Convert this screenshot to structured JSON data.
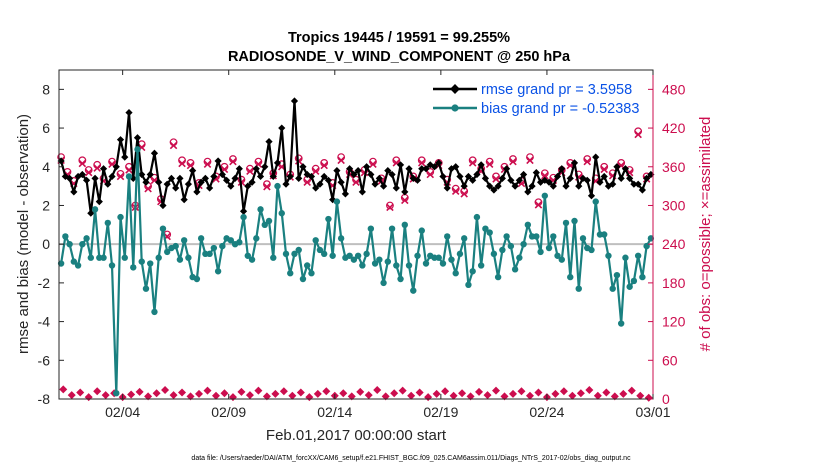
{
  "chart_data": {
    "type": "line",
    "title_line1": "Tropics 19445 / 19591 = 99.255%",
    "title_line2": "RADIOSONDE_V_WIND_COMPONENT @ 250 hPa",
    "xlabel": "Feb.01,2017 00:00:00 start",
    "ylabel": "rmse and bias (model - observation)",
    "ylabel_right": "# of obs: o=possible; ×=assimilated",
    "footer": "data file: /Users/raeder/DAI/ATM_forcXX/CAM6_setup/f.e21.FHIST_BGC.f09_025.CAM6assim.011/Diags_NTrS_2017-02/obs_diag_output.nc",
    "ylim": [
      -8,
      9
    ],
    "ylim_right": [
      0,
      510
    ],
    "xlim": [
      0,
      28
    ],
    "x_ticks": [
      {
        "x": 3,
        "label": "02/04"
      },
      {
        "x": 8,
        "label": "02/09"
      },
      {
        "x": 13,
        "label": "02/14"
      },
      {
        "x": 18,
        "label": "02/19"
      },
      {
        "x": 23,
        "label": "02/24"
      },
      {
        "x": 28,
        "label": "03/01"
      }
    ],
    "y_ticks": [
      -8,
      -6,
      -4,
      -2,
      0,
      2,
      4,
      6,
      8
    ],
    "y_ticks_right": [
      0,
      60,
      120,
      180,
      240,
      300,
      360,
      420,
      480
    ],
    "zero_line": 0,
    "series": [
      {
        "name": "rmse grand pr = 3.5958",
        "color": "#000000",
        "marker": "diamond",
        "values": [
          4.3,
          3.5,
          3.4,
          2.7,
          3.5,
          3.6,
          3.3,
          1.6,
          3.4,
          2.2,
          3.9,
          3.1,
          3.5,
          4.0,
          5.4,
          4.5,
          6.8,
          3.4,
          5.5,
          3.6,
          3.2,
          3.6,
          4.7,
          3.2,
          2.0,
          3.1,
          3.4,
          2.9,
          3.4,
          2.3,
          3.1,
          3.8,
          2.7,
          3.2,
          3.4,
          2.9,
          3.5,
          4.3,
          3.6,
          3.3,
          3.0,
          3.4,
          3.9,
          1.7,
          3.0,
          3.2,
          3.9,
          3.5,
          4.0,
          5.3,
          3.5,
          4.2,
          6.0,
          3.1,
          3.5,
          7.4,
          3.4,
          4.0,
          3.6,
          3.5,
          2.9,
          3.1,
          3.5,
          3.3,
          2.3,
          3.8,
          3.2,
          2.6,
          3.9,
          3.6,
          3.8,
          2.7,
          4.0,
          3.6,
          3.1,
          3.4,
          3.0,
          3.8,
          3.6,
          2.9,
          4.1,
          2.7,
          3.9,
          3.4,
          3.3,
          3.9,
          3.9,
          4.1,
          4.0,
          4.2,
          3.5,
          2.9,
          3.9,
          4.0,
          3.5,
          3.0,
          3.5,
          3.3,
          3.6,
          4.1,
          3.4,
          3.0,
          2.8,
          3.0,
          3.4,
          3.9,
          3.3,
          3.0,
          3.3,
          3.6,
          2.7,
          3.0,
          3.7,
          3.2,
          3.3,
          3.2,
          3.0,
          3.5,
          3.9,
          3.0,
          3.4,
          4.2,
          3.0,
          3.4,
          3.3,
          2.5,
          4.5,
          3.2,
          3.5,
          3.0,
          3.1,
          4.0,
          3.4,
          3.9,
          3.4,
          3.1,
          3.1,
          2.8,
          3.4,
          3.6
        ]
      },
      {
        "name": "bias grand pr = -0.52383",
        "color": "#1a8080",
        "marker": "circle",
        "values": [
          -1.0,
          0.4,
          0.0,
          -0.9,
          -1.1,
          0.0,
          0.3,
          -0.7,
          1.8,
          -0.7,
          -0.7,
          1.1,
          -1.1,
          -7.7,
          1.4,
          -0.7,
          3.5,
          -1.2,
          4.9,
          -0.9,
          -2.3,
          -1.0,
          -3.5,
          -0.7,
          0.8,
          -0.4,
          -0.2,
          -0.1,
          -0.8,
          0.2,
          -0.7,
          -1.7,
          -1.8,
          0.3,
          -0.5,
          -0.5,
          -0.2,
          -1.4,
          -0.1,
          0.3,
          0.2,
          0.0,
          0.1,
          1.4,
          -0.6,
          -0.8,
          0.3,
          1.8,
          1.0,
          1.2,
          -0.7,
          3.0,
          1.6,
          -0.5,
          -1.5,
          -0.5,
          -0.3,
          -1.8,
          -1.1,
          -1.5,
          0.2,
          -0.3,
          -0.5,
          1.3,
          -0.6,
          2.2,
          0.3,
          -0.7,
          -0.6,
          -0.8,
          -0.6,
          -1.1,
          -0.5,
          0.8,
          -1.0,
          -0.8,
          -2.0,
          -0.9,
          0.8,
          -1.1,
          -1.8,
          1.0,
          -1.1,
          -2.4,
          -0.6,
          0.7,
          -1.0,
          -0.6,
          -0.7,
          -0.7,
          -1.0,
          0.4,
          -0.8,
          -1.5,
          -0.5,
          0.3,
          -2.1,
          -1.4,
          1.4,
          -1.1,
          0.8,
          0.6,
          -0.5,
          -1.7,
          -0.3,
          0.4,
          -0.1,
          -1.3,
          -0.7,
          0.0,
          1.0,
          0.4,
          0.4,
          -0.4,
          2.5,
          -0.2,
          0.4,
          -0.6,
          -0.8,
          1.1,
          -1.7,
          1.2,
          -2.3,
          0.3,
          -0.2,
          -0.3,
          2.2,
          0.5,
          0.5,
          -0.6,
          -2.3,
          -1.6,
          -4.1,
          -0.7,
          -2.2,
          -1.9,
          -0.6,
          -1.7,
          -0.1,
          0.3
        ]
      }
    ],
    "obs_possible": [
      {
        "x": 0.1,
        "v": 375
      },
      {
        "x": 0.4,
        "v": 352
      },
      {
        "x": 0.7,
        "v": 338
      },
      {
        "x": 1.1,
        "v": 370
      },
      {
        "x": 1.4,
        "v": 355
      },
      {
        "x": 1.8,
        "v": 363
      },
      {
        "x": 2.1,
        "v": 342
      },
      {
        "x": 2.5,
        "v": 368
      },
      {
        "x": 2.9,
        "v": 349
      },
      {
        "x": 3.3,
        "v": 360
      },
      {
        "x": 3.6,
        "v": 300
      },
      {
        "x": 3.9,
        "v": 395
      },
      {
        "x": 4.2,
        "v": 330
      },
      {
        "x": 4.5,
        "v": 343
      },
      {
        "x": 4.8,
        "v": 310
      },
      {
        "x": 5.1,
        "v": 255
      },
      {
        "x": 5.4,
        "v": 398
      },
      {
        "x": 5.8,
        "v": 370
      },
      {
        "x": 6.2,
        "v": 366
      },
      {
        "x": 6.6,
        "v": 335
      },
      {
        "x": 7.0,
        "v": 368
      },
      {
        "x": 7.4,
        "v": 345
      },
      {
        "x": 7.8,
        "v": 360
      },
      {
        "x": 8.2,
        "v": 372
      },
      {
        "x": 8.6,
        "v": 340
      },
      {
        "x": 9.0,
        "v": 357
      },
      {
        "x": 9.4,
        "v": 368
      },
      {
        "x": 9.8,
        "v": 333
      },
      {
        "x": 10.1,
        "v": 350
      },
      {
        "x": 10.5,
        "v": 364
      },
      {
        "x": 10.9,
        "v": 348
      },
      {
        "x": 11.3,
        "v": 373
      },
      {
        "x": 11.7,
        "v": 340
      },
      {
        "x": 12.1,
        "v": 357
      },
      {
        "x": 12.5,
        "v": 366
      },
      {
        "x": 12.9,
        "v": 335
      },
      {
        "x": 13.3,
        "v": 375
      },
      {
        "x": 13.7,
        "v": 352
      },
      {
        "x": 14.0,
        "v": 340
      },
      {
        "x": 14.4,
        "v": 355
      },
      {
        "x": 14.8,
        "v": 368
      },
      {
        "x": 15.2,
        "v": 342
      },
      {
        "x": 15.6,
        "v": 300
      },
      {
        "x": 15.9,
        "v": 370
      },
      {
        "x": 16.3,
        "v": 312
      },
      {
        "x": 16.7,
        "v": 345
      },
      {
        "x": 17.1,
        "v": 370
      },
      {
        "x": 17.5,
        "v": 352
      },
      {
        "x": 17.9,
        "v": 366
      },
      {
        "x": 18.3,
        "v": 340
      },
      {
        "x": 18.7,
        "v": 326
      },
      {
        "x": 19.1,
        "v": 322
      },
      {
        "x": 19.5,
        "v": 370
      },
      {
        "x": 19.9,
        "v": 357
      },
      {
        "x": 20.3,
        "v": 368
      },
      {
        "x": 20.6,
        "v": 345
      },
      {
        "x": 21.0,
        "v": 360
      },
      {
        "x": 21.4,
        "v": 372
      },
      {
        "x": 21.8,
        "v": 338
      },
      {
        "x": 22.2,
        "v": 375
      },
      {
        "x": 22.6,
        "v": 305
      },
      {
        "x": 22.9,
        "v": 350
      },
      {
        "x": 23.3,
        "v": 343
      },
      {
        "x": 23.7,
        "v": 355
      },
      {
        "x": 24.1,
        "v": 366
      },
      {
        "x": 24.5,
        "v": 348
      },
      {
        "x": 24.9,
        "v": 372
      },
      {
        "x": 25.3,
        "v": 342
      },
      {
        "x": 25.7,
        "v": 360
      },
      {
        "x": 26.1,
        "v": 350
      },
      {
        "x": 26.5,
        "v": 366
      },
      {
        "x": 26.9,
        "v": 355
      },
      {
        "x": 27.3,
        "v": 415
      },
      {
        "x": 27.7,
        "v": 345
      }
    ],
    "obs_assimilated": [
      {
        "x": 0.1,
        "v": 370
      },
      {
        "x": 0.4,
        "v": 348
      },
      {
        "x": 0.7,
        "v": 334
      },
      {
        "x": 1.1,
        "v": 365
      },
      {
        "x": 1.4,
        "v": 351
      },
      {
        "x": 1.8,
        "v": 358
      },
      {
        "x": 2.1,
        "v": 338
      },
      {
        "x": 2.5,
        "v": 364
      },
      {
        "x": 2.9,
        "v": 345
      },
      {
        "x": 3.3,
        "v": 355
      },
      {
        "x": 3.6,
        "v": 297
      },
      {
        "x": 3.9,
        "v": 390
      },
      {
        "x": 4.2,
        "v": 326
      },
      {
        "x": 4.5,
        "v": 339
      },
      {
        "x": 4.8,
        "v": 306
      },
      {
        "x": 5.1,
        "v": 252
      },
      {
        "x": 5.4,
        "v": 393
      },
      {
        "x": 5.8,
        "v": 365
      },
      {
        "x": 6.2,
        "v": 362
      },
      {
        "x": 6.6,
        "v": 331
      },
      {
        "x": 7.0,
        "v": 364
      },
      {
        "x": 7.4,
        "v": 341
      },
      {
        "x": 7.8,
        "v": 356
      },
      {
        "x": 8.2,
        "v": 368
      },
      {
        "x": 8.6,
        "v": 336
      },
      {
        "x": 9.0,
        "v": 353
      },
      {
        "x": 9.4,
        "v": 364
      },
      {
        "x": 9.8,
        "v": 329
      },
      {
        "x": 10.1,
        "v": 346
      },
      {
        "x": 10.5,
        "v": 360
      },
      {
        "x": 10.9,
        "v": 344
      },
      {
        "x": 11.3,
        "v": 369
      },
      {
        "x": 11.7,
        "v": 336
      },
      {
        "x": 12.1,
        "v": 353
      },
      {
        "x": 12.5,
        "v": 362
      },
      {
        "x": 12.9,
        "v": 331
      },
      {
        "x": 13.3,
        "v": 370
      },
      {
        "x": 13.7,
        "v": 348
      },
      {
        "x": 14.0,
        "v": 336
      },
      {
        "x": 14.4,
        "v": 351
      },
      {
        "x": 14.8,
        "v": 364
      },
      {
        "x": 15.2,
        "v": 338
      },
      {
        "x": 15.6,
        "v": 297
      },
      {
        "x": 15.9,
        "v": 366
      },
      {
        "x": 16.3,
        "v": 308
      },
      {
        "x": 16.7,
        "v": 341
      },
      {
        "x": 17.1,
        "v": 366
      },
      {
        "x": 17.5,
        "v": 348
      },
      {
        "x": 17.9,
        "v": 362
      },
      {
        "x": 18.3,
        "v": 336
      },
      {
        "x": 18.7,
        "v": 322
      },
      {
        "x": 19.1,
        "v": 318
      },
      {
        "x": 19.5,
        "v": 366
      },
      {
        "x": 19.9,
        "v": 353
      },
      {
        "x": 20.3,
        "v": 364
      },
      {
        "x": 20.6,
        "v": 341
      },
      {
        "x": 21.0,
        "v": 356
      },
      {
        "x": 21.4,
        "v": 368
      },
      {
        "x": 21.8,
        "v": 334
      },
      {
        "x": 22.2,
        "v": 370
      },
      {
        "x": 22.6,
        "v": 301
      },
      {
        "x": 22.9,
        "v": 346
      },
      {
        "x": 23.3,
        "v": 339
      },
      {
        "x": 23.7,
        "v": 351
      },
      {
        "x": 24.1,
        "v": 362
      },
      {
        "x": 24.5,
        "v": 344
      },
      {
        "x": 24.9,
        "v": 368
      },
      {
        "x": 25.3,
        "v": 338
      },
      {
        "x": 25.7,
        "v": 356
      },
      {
        "x": 26.1,
        "v": 346
      },
      {
        "x": 26.5,
        "v": 362
      },
      {
        "x": 26.9,
        "v": 351
      },
      {
        "x": 27.3,
        "v": 410
      },
      {
        "x": 27.7,
        "v": 341
      }
    ],
    "obs_bottom": [
      {
        "x": 0.2,
        "v": 15
      },
      {
        "x": 0.6,
        "v": 6
      },
      {
        "x": 1.0,
        "v": 10
      },
      {
        "x": 1.4,
        "v": 3
      },
      {
        "x": 1.8,
        "v": 12
      },
      {
        "x": 2.2,
        "v": 6
      },
      {
        "x": 2.6,
        "v": 9
      },
      {
        "x": 3.0,
        "v": 3
      },
      {
        "x": 3.4,
        "v": 7
      },
      {
        "x": 3.8,
        "v": 11
      },
      {
        "x": 4.2,
        "v": 4
      },
      {
        "x": 4.6,
        "v": 9
      },
      {
        "x": 5.0,
        "v": 14
      },
      {
        "x": 5.4,
        "v": 6
      },
      {
        "x": 5.8,
        "v": 10
      },
      {
        "x": 6.2,
        "v": 4
      },
      {
        "x": 6.6,
        "v": 8
      },
      {
        "x": 7.0,
        "v": 13
      },
      {
        "x": 7.4,
        "v": 5
      },
      {
        "x": 7.8,
        "v": 9
      },
      {
        "x": 8.2,
        "v": 3
      },
      {
        "x": 8.6,
        "v": 11
      },
      {
        "x": 9.0,
        "v": 6
      },
      {
        "x": 9.4,
        "v": 13
      },
      {
        "x": 9.8,
        "v": 4
      },
      {
        "x": 10.2,
        "v": 8
      },
      {
        "x": 10.6,
        "v": 12
      },
      {
        "x": 11.0,
        "v": 5
      },
      {
        "x": 11.4,
        "v": 10
      },
      {
        "x": 11.8,
        "v": 3
      },
      {
        "x": 12.2,
        "v": 8
      },
      {
        "x": 12.6,
        "v": 12
      },
      {
        "x": 13.0,
        "v": 5
      },
      {
        "x": 13.4,
        "v": 9
      },
      {
        "x": 13.8,
        "v": 4
      },
      {
        "x": 14.2,
        "v": 11
      },
      {
        "x": 14.6,
        "v": 6
      },
      {
        "x": 15.0,
        "v": 14
      },
      {
        "x": 15.4,
        "v": 4
      },
      {
        "x": 15.8,
        "v": 9
      },
      {
        "x": 16.2,
        "v": 13
      },
      {
        "x": 16.6,
        "v": 5
      },
      {
        "x": 17.0,
        "v": 10
      },
      {
        "x": 17.4,
        "v": 3
      },
      {
        "x": 17.8,
        "v": 8
      },
      {
        "x": 18.2,
        "v": 12
      },
      {
        "x": 18.6,
        "v": 5
      },
      {
        "x": 19.0,
        "v": 9
      },
      {
        "x": 19.4,
        "v": 4
      },
      {
        "x": 19.8,
        "v": 11
      },
      {
        "x": 20.2,
        "v": 6
      },
      {
        "x": 20.6,
        "v": 13
      },
      {
        "x": 21.0,
        "v": 4
      },
      {
        "x": 21.4,
        "v": 8
      },
      {
        "x": 21.8,
        "v": 12
      },
      {
        "x": 22.2,
        "v": 5
      },
      {
        "x": 22.6,
        "v": 10
      },
      {
        "x": 23.0,
        "v": 3
      },
      {
        "x": 23.4,
        "v": 8
      },
      {
        "x": 23.8,
        "v": 12
      },
      {
        "x": 24.2,
        "v": 5
      },
      {
        "x": 24.6,
        "v": 9
      },
      {
        "x": 25.0,
        "v": 14
      },
      {
        "x": 25.4,
        "v": 5
      },
      {
        "x": 25.8,
        "v": 10
      },
      {
        "x": 26.2,
        "v": 4
      },
      {
        "x": 26.6,
        "v": 8
      },
      {
        "x": 27.0,
        "v": 13
      },
      {
        "x": 27.4,
        "v": 5
      },
      {
        "x": 27.8,
        "v": 2
      }
    ],
    "colors": {
      "rmse": "#000000",
      "bias": "#1a8080",
      "obs": "#cc0d4e",
      "zero_line": "#bfbfbf",
      "legend_text": "#0a52e6"
    }
  }
}
